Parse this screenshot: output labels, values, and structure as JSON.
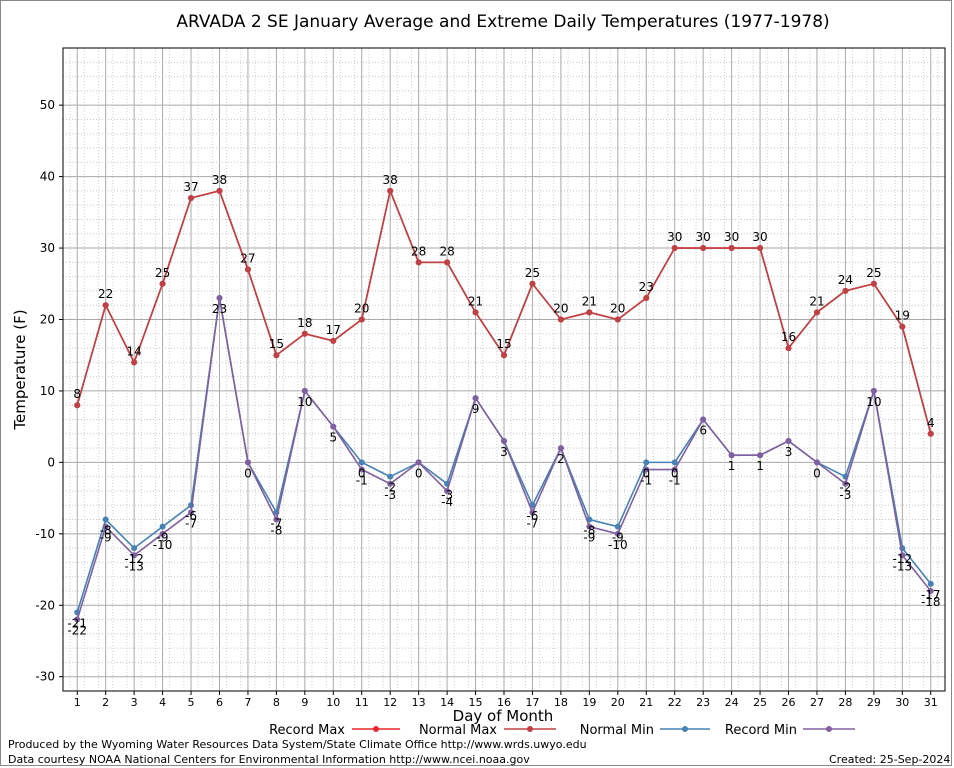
{
  "title": "ARVADA 2 SE January Average and Extreme Daily Temperatures (1977-1978)",
  "footer": {
    "produced_by": "Produced by the Wyoming Water Resources Data System/State Climate Office http://www.wrds.uwyo.edu",
    "courtesy": "Data courtesy NOAA National Centers for Environmental Information http://www.ncei.noaa.gov",
    "created": "Created: 25-Sep-2024"
  },
  "chart_data": {
    "type": "line",
    "title": "ARVADA 2 SE January Average and Extreme Daily Temperatures (1977-1978)",
    "xlabel": "Day of Month",
    "ylabel": "Temperature (F)",
    "x": [
      1,
      2,
      3,
      4,
      5,
      6,
      7,
      8,
      9,
      10,
      11,
      12,
      13,
      14,
      15,
      16,
      17,
      18,
      19,
      20,
      21,
      22,
      23,
      24,
      25,
      26,
      27,
      28,
      29,
      30,
      31
    ],
    "xlim": [
      0.5,
      31.5
    ],
    "ylim": [
      -32,
      58
    ],
    "yticks": [
      -30,
      -20,
      -10,
      0,
      10,
      20,
      30,
      40,
      50
    ],
    "grid": true,
    "legend_position": "bottom",
    "series": [
      {
        "name": "Record Max",
        "color": "#e8262b",
        "values": [
          8,
          22,
          14,
          25,
          37,
          38,
          27,
          15,
          18,
          17,
          20,
          38,
          28,
          28,
          21,
          15,
          25,
          20,
          21,
          20,
          23,
          30,
          30,
          30,
          30,
          16,
          21,
          24,
          25,
          19,
          4
        ],
        "labeled": false
      },
      {
        "name": "Normal Max",
        "color": "#bf4145",
        "values": [
          8,
          22,
          14,
          25,
          37,
          38,
          27,
          15,
          18,
          17,
          20,
          38,
          28,
          28,
          21,
          15,
          25,
          20,
          21,
          20,
          23,
          30,
          30,
          30,
          30,
          16,
          21,
          24,
          25,
          19,
          4
        ],
        "labeled": true
      },
      {
        "name": "Normal Min",
        "color": "#4682b4",
        "values": [
          -21,
          -8,
          -12,
          -9,
          -6,
          23,
          0,
          -7,
          10,
          5,
          0,
          -2,
          0,
          -3,
          9,
          3,
          -6,
          2,
          -8,
          -9,
          0,
          0,
          6,
          1,
          1,
          3,
          0,
          -2,
          10,
          -12,
          -17
        ],
        "labeled": true
      },
      {
        "name": "Record Min",
        "color": "#8060a0",
        "values": [
          -22,
          -9,
          -13,
          -10,
          -7,
          23,
          0,
          -8,
          10,
          5,
          -1,
          -3,
          0,
          -4,
          9,
          3,
          -7,
          2,
          -9,
          -10,
          -1,
          -1,
          6,
          1,
          1,
          3,
          0,
          -3,
          10,
          -13,
          -18
        ],
        "labeled": true
      }
    ]
  }
}
